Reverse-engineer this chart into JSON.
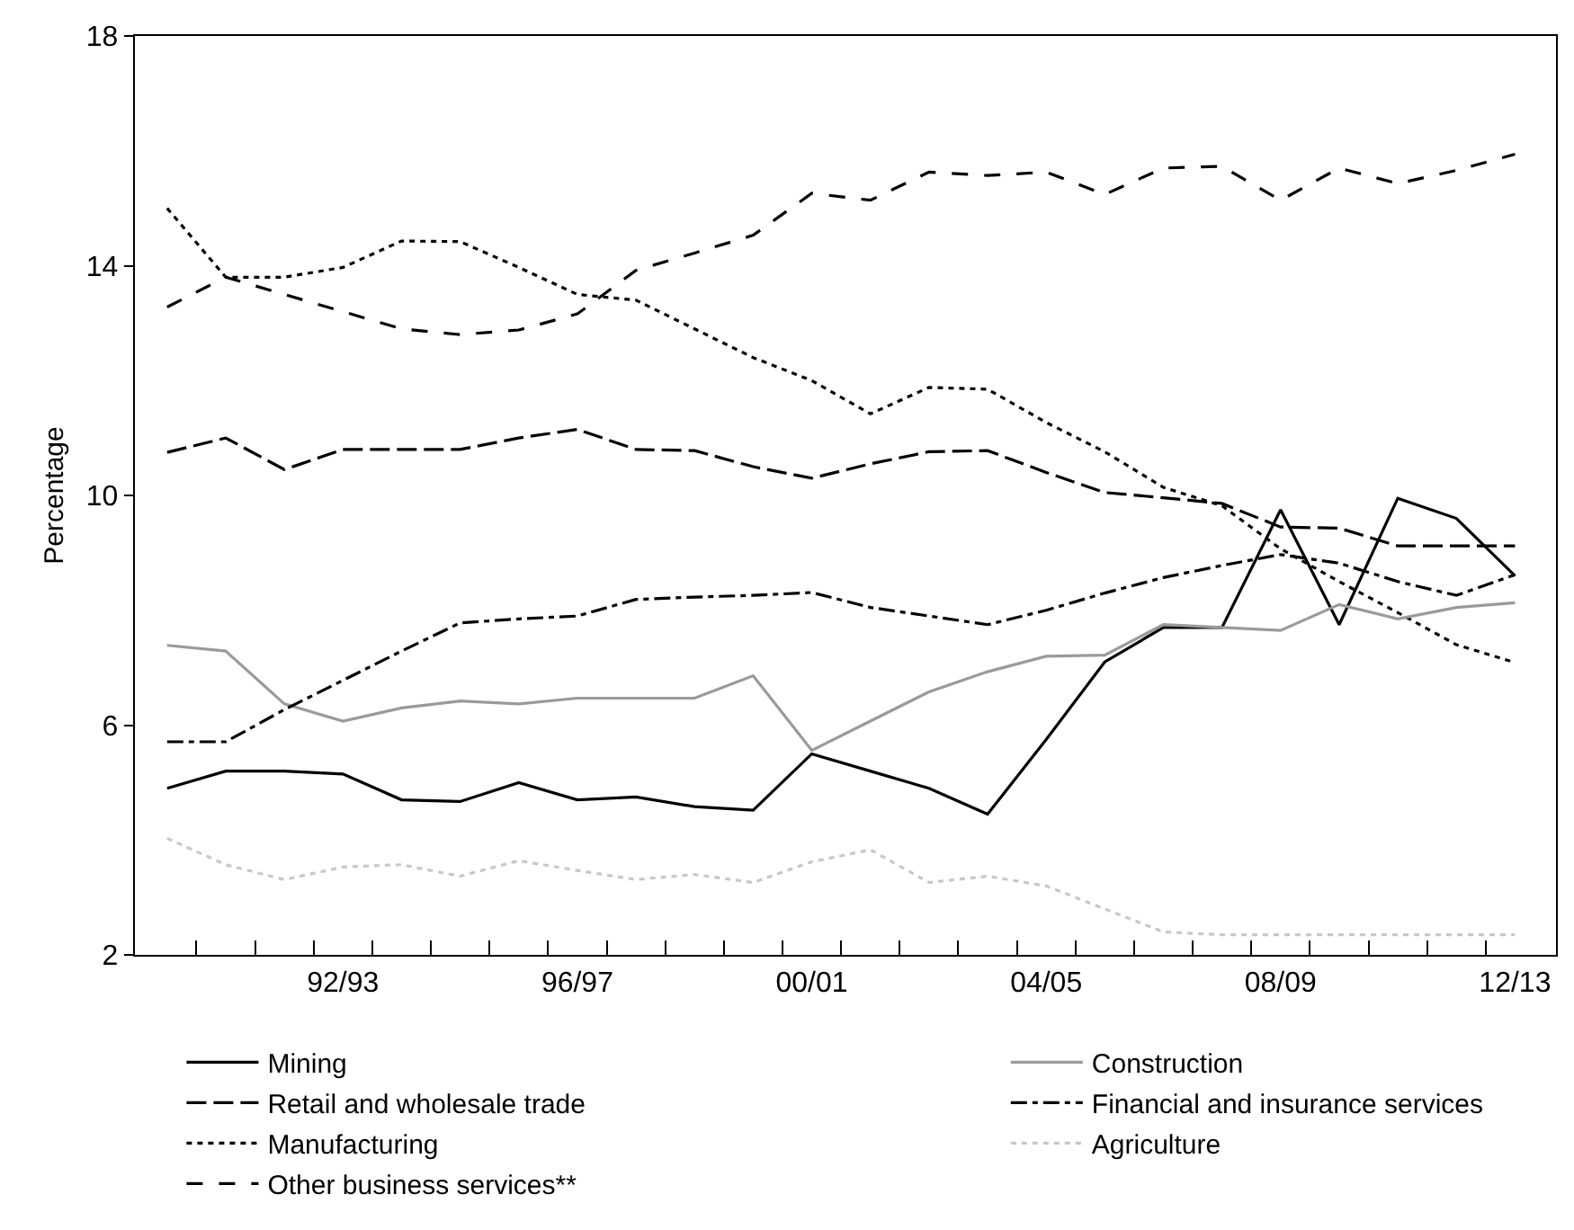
{
  "chart_data": {
    "type": "line",
    "ylabel": "Percentage",
    "categories": [
      null,
      null,
      null,
      "92/93",
      null,
      null,
      null,
      "96/97",
      null,
      null,
      null,
      "00/01",
      null,
      null,
      null,
      "04/05",
      null,
      null,
      null,
      "08/09",
      null,
      null,
      null,
      "12/13"
    ],
    "ylim": [
      2,
      18
    ],
    "yticks": [
      2,
      6,
      10,
      14,
      18
    ],
    "grid": false,
    "legend": "bottom",
    "marker": "none",
    "series": [
      {
        "name": "Mining",
        "color": "#000000",
        "line_style": "solid",
        "values": [
          4.9,
          5.2,
          5.2,
          5.15,
          4.7,
          4.67,
          5.0,
          4.7,
          4.75,
          4.58,
          4.52,
          5.5,
          5.2,
          4.9,
          4.45,
          5.75,
          7.1,
          7.7,
          7.7,
          9.75,
          7.75,
          9.95,
          9.6,
          8.6
        ]
      },
      {
        "name": "Retail and wholesale trade",
        "color": "#000000",
        "line_style": "longdash",
        "values": [
          10.75,
          11.0,
          10.45,
          10.8,
          10.8,
          10.8,
          11.0,
          11.15,
          10.8,
          10.78,
          10.5,
          10.3,
          10.55,
          10.76,
          10.78,
          10.4,
          10.05,
          9.96,
          9.86,
          9.45,
          9.43,
          9.12,
          9.12,
          9.12
        ]
      },
      {
        "name": "Manufacturing",
        "color": "#000000",
        "line_style": "dotted",
        "values": [
          15.0,
          13.8,
          13.8,
          13.97,
          14.43,
          14.42,
          13.97,
          13.5,
          13.4,
          12.9,
          12.4,
          12.0,
          11.42,
          11.88,
          11.85,
          11.27,
          10.76,
          10.14,
          9.82,
          9.07,
          8.5,
          7.96,
          7.4,
          7.09
        ]
      },
      {
        "name": "Other business services**",
        "color": "#000000",
        "line_style": "dashed",
        "values": [
          13.28,
          13.8,
          13.5,
          13.2,
          12.9,
          12.8,
          12.88,
          13.16,
          13.92,
          14.22,
          14.53,
          15.26,
          15.14,
          15.63,
          15.57,
          15.63,
          15.24,
          15.7,
          15.73,
          15.14,
          15.7,
          15.43,
          15.66,
          15.94
        ]
      },
      {
        "name": "Construction",
        "color": "#9a9a9a",
        "line_style": "solid",
        "values": [
          7.39,
          7.29,
          6.37,
          6.07,
          6.3,
          6.42,
          6.37,
          6.47,
          6.47,
          6.47,
          6.86,
          5.56,
          6.07,
          6.58,
          6.93,
          7.2,
          7.22,
          7.75,
          7.7,
          7.65,
          8.1,
          7.85,
          8.05,
          8.13
        ]
      },
      {
        "name": "Financial and insurance services",
        "color": "#000000",
        "line_style": "dashdot",
        "values": [
          5.71,
          5.71,
          6.27,
          6.78,
          7.29,
          7.78,
          7.85,
          7.9,
          8.19,
          8.23,
          8.26,
          8.31,
          8.05,
          7.9,
          7.75,
          8.0,
          8.3,
          8.57,
          8.78,
          8.97,
          8.82,
          8.5,
          8.26,
          8.62
        ]
      },
      {
        "name": "Agriculture",
        "color": "#c8c8c8",
        "line_style": "dotted",
        "values": [
          4.03,
          3.57,
          3.31,
          3.53,
          3.57,
          3.37,
          3.64,
          3.47,
          3.31,
          3.4,
          3.26,
          3.62,
          3.83,
          3.26,
          3.37,
          3.2,
          2.8,
          2.4,
          2.35,
          2.35,
          2.35,
          2.35,
          2.35,
          2.35
        ]
      }
    ]
  }
}
